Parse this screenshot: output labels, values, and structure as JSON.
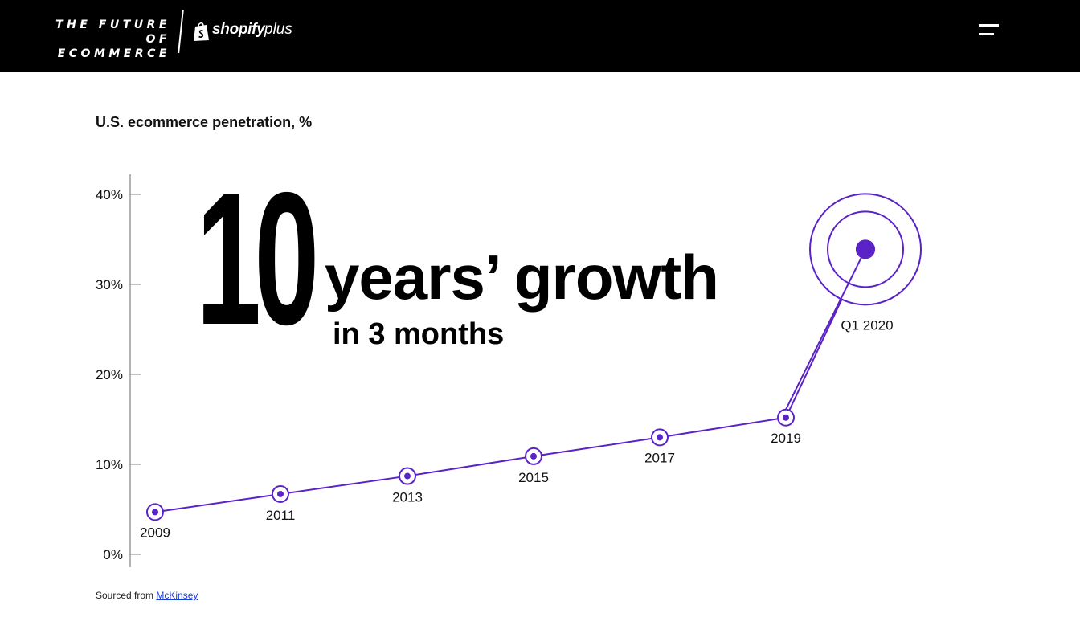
{
  "header": {
    "brand_line1": "THE FUTURE",
    "brand_line2": "OF ECOMMERCE",
    "partner_word": "shopify",
    "partner_suffix": "plus",
    "menu_icon": "hamburger-icon"
  },
  "headline": {
    "number": "10",
    "main": "years’ growth",
    "sub": "in 3 months"
  },
  "source": {
    "prefix": "Sourced from",
    "link_text": "McKinsey"
  },
  "colors": {
    "accent": "#5a22c7",
    "background": "#ffffff",
    "header_bg": "#000000",
    "axis": "#9a9a9a"
  },
  "chart_data": {
    "type": "line",
    "title": "U.S. ecommerce penetration, %",
    "xlabel": "",
    "ylabel": "",
    "ylim": [
      0,
      40
    ],
    "yticks": [
      0,
      10,
      20,
      30,
      40
    ],
    "ytick_labels": [
      "0%",
      "10%",
      "20%",
      "30%",
      "40%"
    ],
    "grid": false,
    "x": [
      "2009",
      "2011",
      "2013",
      "2015",
      "2017",
      "2019",
      "Q1 2020"
    ],
    "values": [
      4.7,
      6.7,
      8.7,
      10.9,
      13.0,
      15.2,
      33.9
    ],
    "highlight": "Q1 2020"
  }
}
